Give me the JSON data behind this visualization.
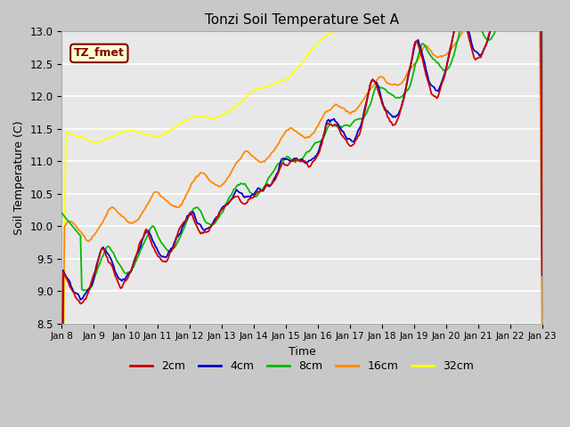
{
  "title": "Tonzi Soil Temperature Set A",
  "xlabel": "Time",
  "ylabel": "Soil Temperature (C)",
  "ylim": [
    8.5,
    13.0
  ],
  "yticks": [
    8.5,
    9.0,
    9.5,
    10.0,
    10.5,
    11.0,
    11.5,
    12.0,
    12.5,
    13.0
  ],
  "x_tick_labels": [
    "Jan 8",
    "Jan 9",
    "Jan 10",
    "Jan 11",
    "Jan 12",
    "Jan 13",
    "Jan 14",
    "Jan 15",
    "Jan 16",
    "Jan 17",
    "Jan 18",
    "Jan 19",
    "Jan 20",
    "Jan 21",
    "Jan 22",
    "Jan 23"
  ],
  "colors": {
    "2cm": "#cc0000",
    "4cm": "#0000cc",
    "8cm": "#00bb00",
    "16cm": "#ff8800",
    "32cm": "#ffff00"
  },
  "legend_label": "TZ_fmet",
  "legend_box_color": "#800000",
  "legend_box_fill": "#ffffcc",
  "bg_color": "#e8e8e8",
  "n_points": 361
}
